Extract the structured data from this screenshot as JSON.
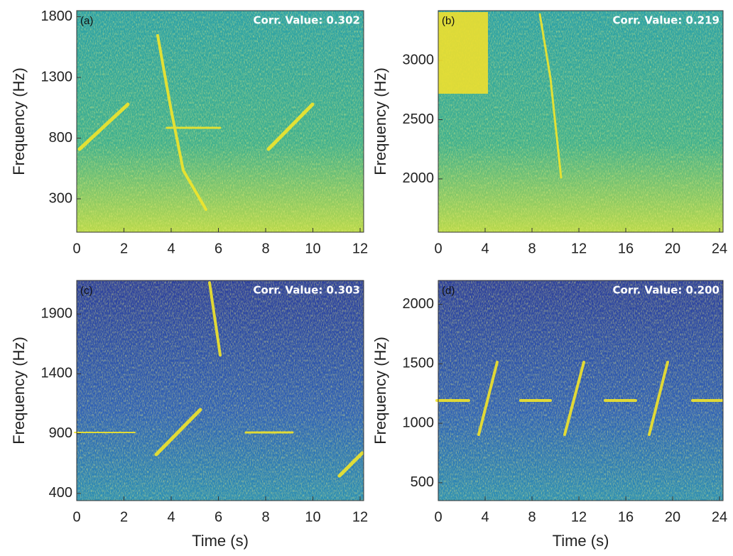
{
  "chart_data": [
    {
      "type": "spectrogram",
      "panel_label": "(a)",
      "annotation": "Corr. Value: 0.302",
      "ylabel": "Frequency (Hz)",
      "colormap": "teal",
      "xlim": [
        0,
        12.15
      ],
      "xticks": [
        0,
        2,
        4,
        6,
        8,
        10,
        12
      ],
      "ylim": [
        25,
        1850
      ],
      "yticks": [
        300,
        800,
        1300,
        1800
      ]
    },
    {
      "type": "spectrogram",
      "panel_label": "(b)",
      "annotation": "Corr. Value: 0.219",
      "ylabel": "Frequency (Hz)",
      "colormap": "teal",
      "xlim": [
        0,
        24.3
      ],
      "xticks": [
        0,
        4,
        8,
        12,
        16,
        20,
        24
      ],
      "ylim": [
        1550,
        3420
      ],
      "yticks": [
        2000,
        2500,
        3000
      ]
    },
    {
      "type": "spectrogram",
      "panel_label": "(c)",
      "annotation": "Corr. Value: 0.303",
      "ylabel": "Frequency (Hz)",
      "xlabel": "Time (s)",
      "colormap": "blue",
      "xlim": [
        0,
        12.15
      ],
      "xticks": [
        0,
        2,
        4,
        6,
        8,
        10,
        12
      ],
      "ylim": [
        340,
        2180
      ],
      "yticks": [
        400,
        900,
        1400,
        1900
      ]
    },
    {
      "type": "spectrogram",
      "panel_label": "(d)",
      "annotation": "Corr. Value: 0.200",
      "ylabel": "Frequency (Hz)",
      "xlabel": "Time (s)",
      "colormap": "blue",
      "xlim": [
        0,
        24.3
      ],
      "xticks": [
        0,
        4,
        8,
        12,
        16,
        20,
        24
      ],
      "ylim": [
        350,
        2200
      ],
      "yticks": [
        500,
        1000,
        1500,
        2000
      ]
    }
  ]
}
